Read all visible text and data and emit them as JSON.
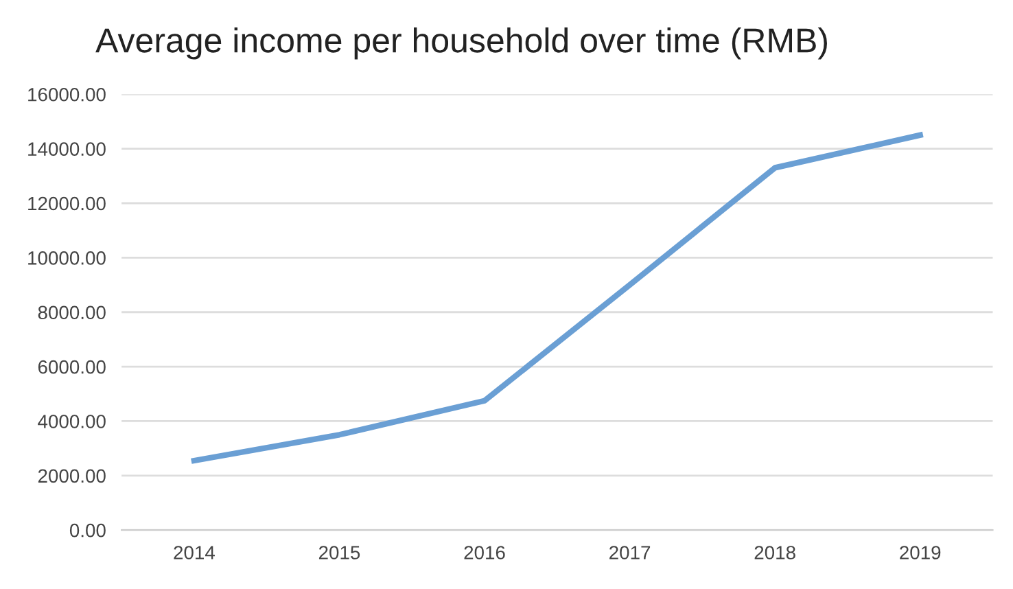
{
  "chart_data": {
    "type": "line",
    "title": "Average income per household over time (RMB)",
    "categories": [
      "2014",
      "2015",
      "2016",
      "2017",
      "2018",
      "2019"
    ],
    "series": [
      {
        "color": "#6a9fd4",
        "values": [
          2550,
          3500,
          4750,
          9000,
          13300,
          14500
        ]
      }
    ],
    "ylim": [
      0,
      16000
    ],
    "yticks": [
      {
        "value": 0,
        "label": "0.00"
      },
      {
        "value": 2000,
        "label": "2000.00"
      },
      {
        "value": 4000,
        "label": "4000.00"
      },
      {
        "value": 6000,
        "label": "6000.00"
      },
      {
        "value": 8000,
        "label": "8000.00"
      },
      {
        "value": 10000,
        "label": "10000.00"
      },
      {
        "value": 12000,
        "label": "12000.00"
      },
      {
        "value": 14000,
        "label": "14000.00"
      },
      {
        "value": 16000,
        "label": "16000.00"
      }
    ],
    "grid": "y",
    "marker": "none",
    "line_style": "solid"
  }
}
